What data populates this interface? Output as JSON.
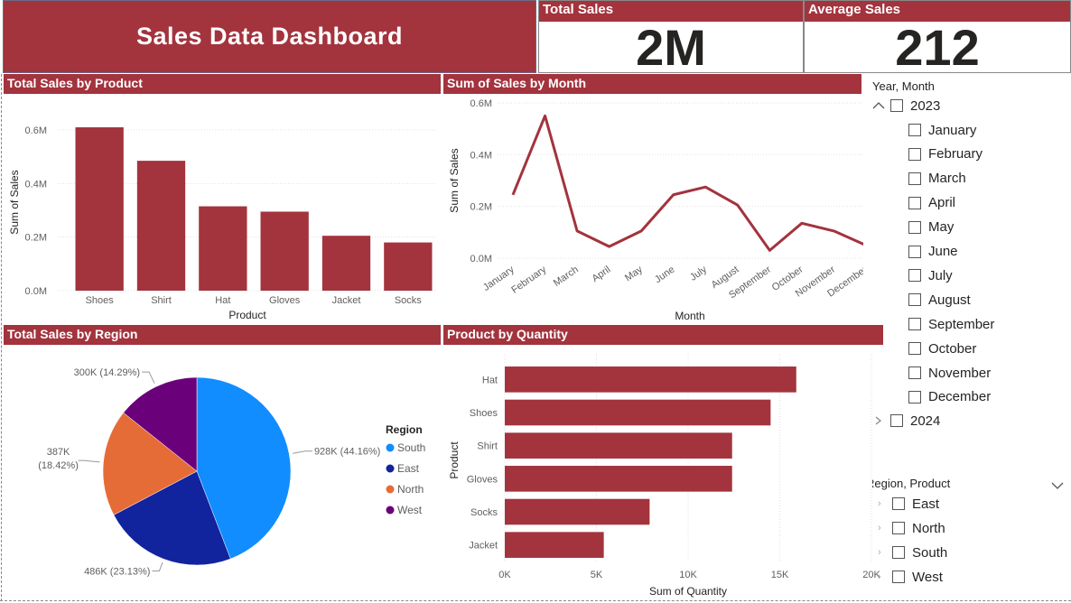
{
  "title": "Sales Data Dashboard",
  "cards": {
    "total_sales": {
      "label": "Total Sales",
      "value": "2M"
    },
    "average_sales": {
      "label": "Average Sales",
      "value": "212"
    }
  },
  "visuals": {
    "product_bar": {
      "title": "Total Sales by Product"
    },
    "month_line": {
      "title": "Sum of Sales by Month"
    },
    "region_pie": {
      "title": "Total Sales by Region"
    },
    "qty_bar": {
      "title": "Product by Quantity"
    }
  },
  "slicers": {
    "year_month": {
      "title": "Year, Month",
      "year_2023": "2023",
      "months": [
        "January",
        "February",
        "March",
        "April",
        "May",
        "June",
        "July",
        "August",
        "September",
        "October",
        "November",
        "December"
      ],
      "year_2024": "2024"
    },
    "region_product": {
      "title": "Region, Product",
      "items": [
        "East",
        "North",
        "South",
        "West"
      ]
    }
  },
  "chart_data": [
    {
      "type": "bar",
      "title": "Total Sales by Product",
      "categories": [
        "Shoes",
        "Shirt",
        "Hat",
        "Gloves",
        "Jacket",
        "Socks"
      ],
      "values": [
        0.61,
        0.485,
        0.315,
        0.295,
        0.205,
        0.18
      ],
      "xlabel": "Product",
      "ylabel": "Sum of Sales",
      "ylim": [
        0,
        0.6
      ],
      "yticks": [
        "0.0M",
        "0.2M",
        "0.4M",
        "0.6M"
      ],
      "color": "#a3333d"
    },
    {
      "type": "line",
      "title": "Sum of Sales by Month",
      "categories": [
        "January",
        "February",
        "March",
        "April",
        "May",
        "June",
        "July",
        "August",
        "September",
        "October",
        "November",
        "December"
      ],
      "values": [
        0.245,
        0.55,
        0.105,
        0.045,
        0.105,
        0.245,
        0.275,
        0.205,
        0.03,
        0.135,
        0.105,
        0.05
      ],
      "xlabel": "Month",
      "ylabel": "Sum of Sales",
      "ylim": [
        0,
        0.6
      ],
      "yticks": [
        "0.0M",
        "0.2M",
        "0.4M",
        "0.6M"
      ],
      "color": "#a3333d"
    },
    {
      "type": "pie",
      "title": "Total Sales by Region",
      "legend_title": "Region",
      "slices": [
        {
          "name": "South",
          "value": 44.16,
          "label": "928K (44.16%)",
          "color": "#118dff"
        },
        {
          "name": "East",
          "value": 23.13,
          "label": "486K (23.13%)",
          "color": "#12239e"
        },
        {
          "name": "North",
          "value": 18.42,
          "label_line1": "387K",
          "label_line2": "(18.42%)",
          "color": "#e66c37"
        },
        {
          "name": "West",
          "value": 14.29,
          "label": "300K (14.29%)",
          "color": "#6b007b"
        }
      ],
      "legend_position": "right"
    },
    {
      "type": "bar",
      "orientation": "horizontal",
      "title": "Product by Quantity",
      "categories": [
        "Hat",
        "Shoes",
        "Shirt",
        "Gloves",
        "Socks",
        "Jacket"
      ],
      "values": [
        15900,
        14500,
        12400,
        12400,
        7900,
        5400
      ],
      "xlabel": "Sum of Quantity",
      "ylabel": "Product",
      "xlim": [
        0,
        20000
      ],
      "xticks": [
        "0K",
        "5K",
        "10K",
        "15K",
        "20K"
      ],
      "color": "#a3333d"
    }
  ]
}
